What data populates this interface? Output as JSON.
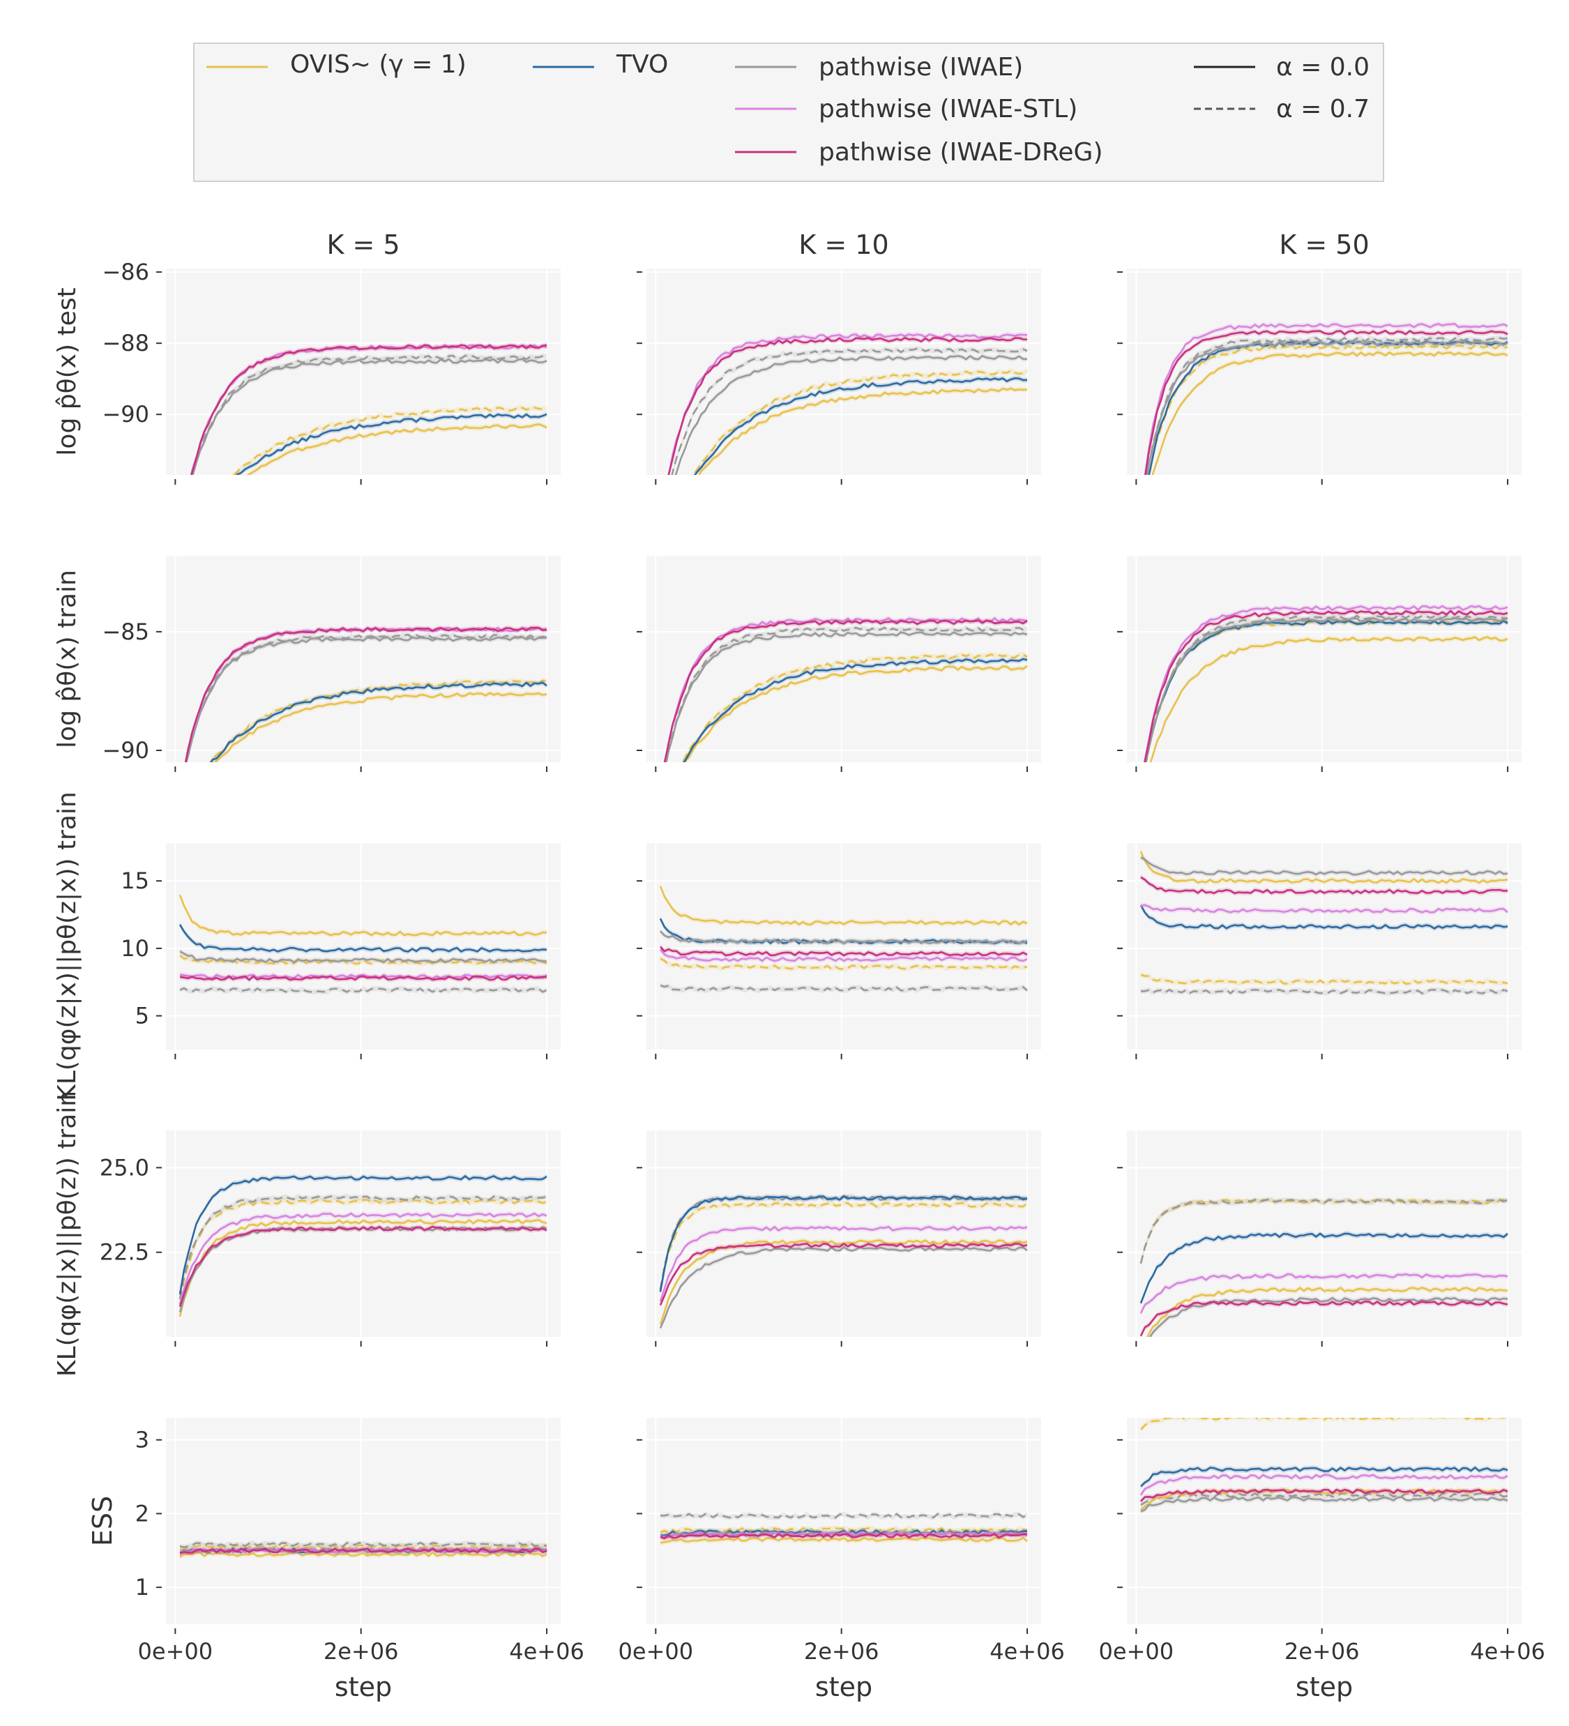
{
  "figure": {
    "background": "#ffffff",
    "panel_bg": "#f5f5f5",
    "grid_color": "#ffffff"
  },
  "legend": {
    "items": [
      {
        "label": "OVIS~ (γ = 1)",
        "color": "#e8c14a",
        "style": "solid"
      },
      {
        "label": "TVO",
        "color": "#2c6aa0",
        "style": "solid"
      },
      {
        "label": "pathwise (IWAE)",
        "color": "#999999",
        "style": "solid"
      },
      {
        "label": "pathwise (IWAE-STL)",
        "color": "#d884e0",
        "style": "solid"
      },
      {
        "label": "pathwise (IWAE-DReG)",
        "color": "#c8317e",
        "style": "solid"
      },
      {
        "label": "α = 0.0",
        "color": "#222222",
        "style": "solid"
      },
      {
        "label": "α = 0.7",
        "color": "#555555",
        "style": "dashed"
      }
    ]
  },
  "columns": [
    {
      "title": "K = 5"
    },
    {
      "title": "K = 10"
    },
    {
      "title": "K = 50"
    }
  ],
  "xaxis": {
    "label": "step",
    "ticks": [
      0,
      2000000,
      4000000
    ],
    "tick_labels": [
      "0e+00",
      "2e+06",
      "4e+06"
    ],
    "range": [
      -100000,
      4150000
    ]
  },
  "rows": [
    {
      "ylabel": "log p̂θ(x) test",
      "ylim": [
        -91.7,
        -85.9
      ],
      "yticks": [
        -86,
        -88,
        -90
      ],
      "ytick_labels": [
        "−86",
        "−88",
        "−90"
      ]
    },
    {
      "ylabel": "log p̂θ(x) train",
      "ylim": [
        -90.5,
        -81.8
      ],
      "yticks": [
        -85,
        -90
      ],
      "ytick_labels": [
        "−85",
        "−90"
      ]
    },
    {
      "ylabel": "KL(qφ(z|x)||pθ(z|x)) train",
      "ylim": [
        2.5,
        17.8
      ],
      "yticks": [
        5,
        10,
        15
      ],
      "ytick_labels": [
        "5",
        "10",
        "15"
      ]
    },
    {
      "ylabel": "KL(qφ(z|x)||pθ(z)) train",
      "ylim": [
        20.0,
        26.1
      ],
      "yticks": [
        22.5,
        25.0
      ],
      "ytick_labels": [
        "22.5",
        "25.0"
      ]
    },
    {
      "ylabel": "ESS",
      "ylim": [
        0.5,
        3.3
      ],
      "yticks": [
        1,
        2,
        3
      ],
      "ytick_labels": [
        "1",
        "2",
        "3"
      ]
    }
  ],
  "chart_data": {
    "type": "line",
    "x_start": 50000,
    "x_end": 4000000,
    "series_order": [
      "OVIS",
      "TVO",
      "IWAE",
      "STL",
      "DREG"
    ],
    "series_colors": {
      "OVIS": "#e8c14a",
      "TVO": "#2c6aa0",
      "IWAE": "#999999",
      "STL": "#d884e0",
      "DREG": "#c8317e"
    },
    "curve_model": "y = start + (end - start) * (1 - exp(-x / tau)); dashed = alpha 0.7",
    "panels": [
      [
        {
          "solid": {
            "OVIS": [
              -94,
              -90.3,
              0.8
            ],
            "TVO": [
              -94,
              -90.0,
              0.8
            ],
            "IWAE": [
              -94,
              -88.5,
              0.35
            ],
            "STL": [
              -94,
              -88.1,
              0.35
            ],
            "DREG": [
              -94,
              -88.1,
              0.35
            ]
          },
          "dashed": {
            "OVIS": [
              -94,
              -89.8,
              0.8
            ],
            "IWAE": [
              -94,
              -88.4,
              0.35
            ]
          }
        },
        {
          "solid": {
            "OVIS": [
              -93,
              -87.6,
              0.7
            ],
            "TVO": [
              -93,
              -87.2,
              0.7
            ],
            "IWAE": [
              -93,
              -85.3,
              0.3
            ],
            "STL": [
              -93,
              -84.9,
              0.3
            ],
            "DREG": [
              -93,
              -84.9,
              0.3
            ]
          },
          "dashed": {
            "OVIS": [
              -93,
              -87.1,
              0.7
            ],
            "IWAE": [
              -93,
              -85.2,
              0.3
            ]
          }
        },
        {
          "solid": {
            "OVIS": [
              15.5,
              11.1,
              0.12
            ],
            "TVO": [
              12.8,
              9.9,
              0.12
            ],
            "IWAE": [
              10.2,
              9.1,
              0.12
            ],
            "STL": [
              8.2,
              7.9,
              0.12
            ],
            "DREG": [
              8.0,
              7.8,
              0.12
            ]
          },
          "dashed": {
            "OVIS": [
              9.8,
              9.0,
              0.12
            ],
            "IWAE": [
              7.0,
              6.9,
              0.12
            ]
          }
        },
        {
          "solid": {
            "OVIS": [
              20.0,
              23.4,
              0.25
            ],
            "TVO": [
              20.3,
              24.7,
              0.2
            ],
            "IWAE": [
              20.2,
              23.2,
              0.25
            ],
            "STL": [
              20.4,
              23.6,
              0.25
            ],
            "DREG": [
              20.4,
              23.2,
              0.25
            ]
          },
          "dashed": {
            "OVIS": [
              20.3,
              24.0,
              0.2
            ],
            "IWAE": [
              20.3,
              24.1,
              0.2
            ]
          }
        },
        {
          "solid": {
            "OVIS": [
              1.4,
              1.45,
              0.1
            ],
            "TVO": [
              1.45,
              1.5,
              0.1
            ],
            "IWAE": [
              1.45,
              1.5,
              0.1
            ],
            "STL": [
              1.45,
              1.5,
              0.1
            ],
            "DREG": [
              1.45,
              1.5,
              0.1
            ]
          },
          "dashed": {
            "OVIS": [
              1.5,
              1.55,
              0.1
            ],
            "IWAE": [
              1.55,
              1.58,
              0.1
            ]
          }
        }
      ],
      [
        {
          "solid": {
            "OVIS": [
              -94,
              -89.3,
              0.7
            ],
            "TVO": [
              -94,
              -89.0,
              0.7
            ],
            "IWAE": [
              -94,
              -88.4,
              0.4
            ],
            "STL": [
              -94,
              -87.8,
              0.3
            ],
            "DREG": [
              -94,
              -87.9,
              0.3
            ]
          },
          "dashed": {
            "OVIS": [
              -94,
              -88.8,
              0.7
            ],
            "IWAE": [
              -94,
              -88.2,
              0.35
            ]
          }
        },
        {
          "solid": {
            "OVIS": [
              -93,
              -86.5,
              0.65
            ],
            "TVO": [
              -93,
              -86.2,
              0.65
            ],
            "IWAE": [
              -93,
              -85.1,
              0.3
            ],
            "STL": [
              -93,
              -84.5,
              0.28
            ],
            "DREG": [
              -93,
              -84.6,
              0.28
            ]
          },
          "dashed": {
            "OVIS": [
              -93,
              -86.0,
              0.65
            ],
            "IWAE": [
              -93,
              -84.9,
              0.3
            ]
          }
        },
        {
          "solid": {
            "OVIS": [
              15.6,
              11.9,
              0.15
            ],
            "TVO": [
              13.0,
              10.5,
              0.12
            ],
            "IWAE": [
              11.5,
              10.5,
              0.15
            ],
            "STL": [
              10.2,
              9.2,
              0.12
            ],
            "DREG": [
              10.3,
              9.6,
              0.12
            ]
          },
          "dashed": {
            "OVIS": [
              9.5,
              8.6,
              0.12
            ],
            "IWAE": [
              7.3,
              7.0,
              0.12
            ]
          }
        },
        {
          "solid": {
            "OVIS": [
              19.8,
              22.8,
              0.25
            ],
            "TVO": [
              20.2,
              24.1,
              0.15
            ],
            "IWAE": [
              19.8,
              22.6,
              0.3
            ],
            "STL": [
              20.4,
              23.2,
              0.2
            ],
            "DREG": [
              20.4,
              22.7,
              0.2
            ]
          },
          "dashed": {
            "OVIS": [
              20.3,
              23.9,
              0.15
            ],
            "IWAE": [
              20.3,
              24.1,
              0.15
            ]
          }
        },
        {
          "solid": {
            "OVIS": [
              1.55,
              1.65,
              0.1
            ],
            "TVO": [
              1.65,
              1.75,
              0.1
            ],
            "IWAE": [
              1.65,
              1.72,
              0.1
            ],
            "STL": [
              1.65,
              1.72,
              0.1
            ],
            "DREG": [
              1.65,
              1.7,
              0.1
            ]
          },
          "dashed": {
            "OVIS": [
              1.7,
              1.78,
              0.1
            ],
            "IWAE": [
              1.95,
              1.97,
              0.1
            ]
          }
        }
      ],
      [
        {
          "solid": {
            "OVIS": [
              -94,
              -88.3,
              0.35
            ],
            "TVO": [
              -94,
              -88.0,
              0.28
            ],
            "IWAE": [
              -94,
              -88.0,
              0.25
            ],
            "STL": [
              -94,
              -87.5,
              0.22
            ],
            "DREG": [
              -94,
              -87.7,
              0.22
            ]
          },
          "dashed": {
            "OVIS": [
              -94,
              -88.1,
              0.28
            ],
            "IWAE": [
              -94,
              -87.9,
              0.25
            ]
          }
        },
        {
          "solid": {
            "OVIS": [
              -93,
              -85.3,
              0.4
            ],
            "TVO": [
              -93,
              -84.6,
              0.3
            ],
            "IWAE": [
              -93,
              -84.5,
              0.3
            ],
            "STL": [
              -93,
              -84.0,
              0.28
            ],
            "DREG": [
              -93,
              -84.2,
              0.28
            ]
          },
          "dashed": {
            "OVIS": [
              -93,
              -84.6,
              0.3
            ],
            "IWAE": [
              -93,
              -84.4,
              0.3
            ]
          }
        },
        {
          "solid": {
            "OVIS": [
              18.5,
              15.0,
              0.12
            ],
            "TVO": [
              14.2,
              11.6,
              0.12
            ],
            "IWAE": [
              17.5,
              15.6,
              0.12
            ],
            "STL": [
              13.5,
              12.8,
              0.12
            ],
            "DREG": [
              16.0,
              14.2,
              0.12
            ]
          },
          "dashed": {
            "OVIS": [
              8.5,
              7.5,
              0.12
            ],
            "IWAE": [
              7.0,
              6.8,
              0.12
            ]
          }
        },
        {
          "solid": {
            "OVIS": [
              19.3,
              21.4,
              0.3
            ],
            "TVO": [
              20.6,
              23.0,
              0.25
            ],
            "IWAE": [
              19.3,
              21.1,
              0.3
            ],
            "STL": [
              20.5,
              21.8,
              0.25
            ],
            "DREG": [
              19.8,
              21.0,
              0.2
            ]
          },
          "dashed": {
            "OVIS": [
              21.5,
              24.0,
              0.15
            ],
            "IWAE": [
              21.5,
              24.0,
              0.15
            ]
          }
        },
        {
          "solid": {
            "OVIS": [
              2.0,
              2.3,
              0.2
            ],
            "TVO": [
              2.3,
              2.6,
              0.15
            ],
            "IWAE": [
              2.0,
              2.2,
              0.2
            ],
            "STL": [
              2.2,
              2.5,
              0.2
            ],
            "DREG": [
              2.15,
              2.3,
              0.2
            ]
          },
          "dashed": {
            "OVIS": [
              3.1,
              3.3,
              0.15
            ],
            "IWAE": [
              2.1,
              2.25,
              0.2
            ]
          }
        }
      ]
    ]
  }
}
